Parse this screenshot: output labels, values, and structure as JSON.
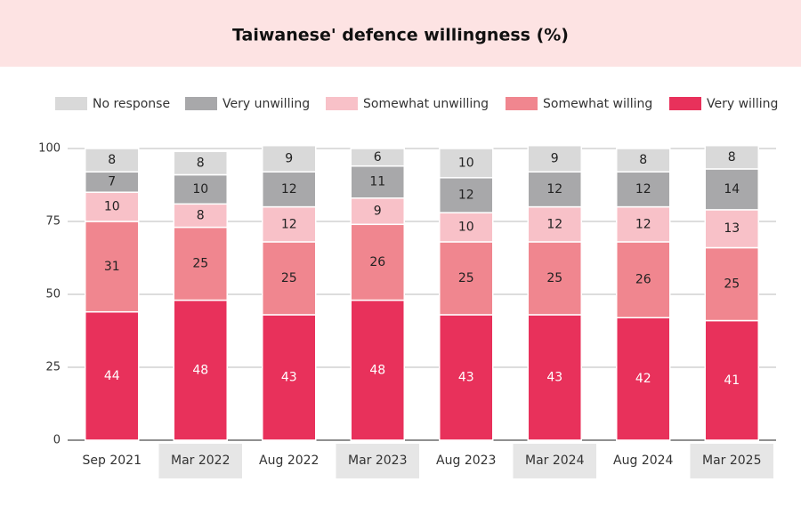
{
  "chart_data": {
    "type": "stacked_bar",
    "title": "Taiwanese' defence willingness (%)",
    "categories": [
      "Sep 2021",
      "Mar 2022",
      "Aug 2022",
      "Mar 2023",
      "Aug 2023",
      "Mar 2024",
      "Aug 2024",
      "Mar 2025"
    ],
    "series": [
      {
        "name": "No response",
        "color": "#d9d9d9",
        "values": [
          8,
          8,
          9,
          6,
          10,
          9,
          8,
          8
        ]
      },
      {
        "name": "Very unwilling",
        "color": "#a8a8aa",
        "values": [
          7,
          10,
          12,
          11,
          12,
          12,
          12,
          14
        ]
      },
      {
        "name": "Somewhat unwilling",
        "color": "#f8c1c8",
        "values": [
          10,
          8,
          12,
          9,
          10,
          12,
          12,
          13
        ]
      },
      {
        "name": "Somewhat willing",
        "color": "#f0868f",
        "values": [
          31,
          25,
          25,
          26,
          25,
          25,
          26,
          25
        ]
      },
      {
        "name": "Very willing",
        "color": "#e8315b",
        "values": [
          44,
          48,
          43,
          48,
          43,
          43,
          42,
          41
        ]
      }
    ],
    "ylim": [
      0,
      100
    ],
    "yticks": [
      0,
      25,
      50,
      75,
      100
    ],
    "grid": true
  }
}
